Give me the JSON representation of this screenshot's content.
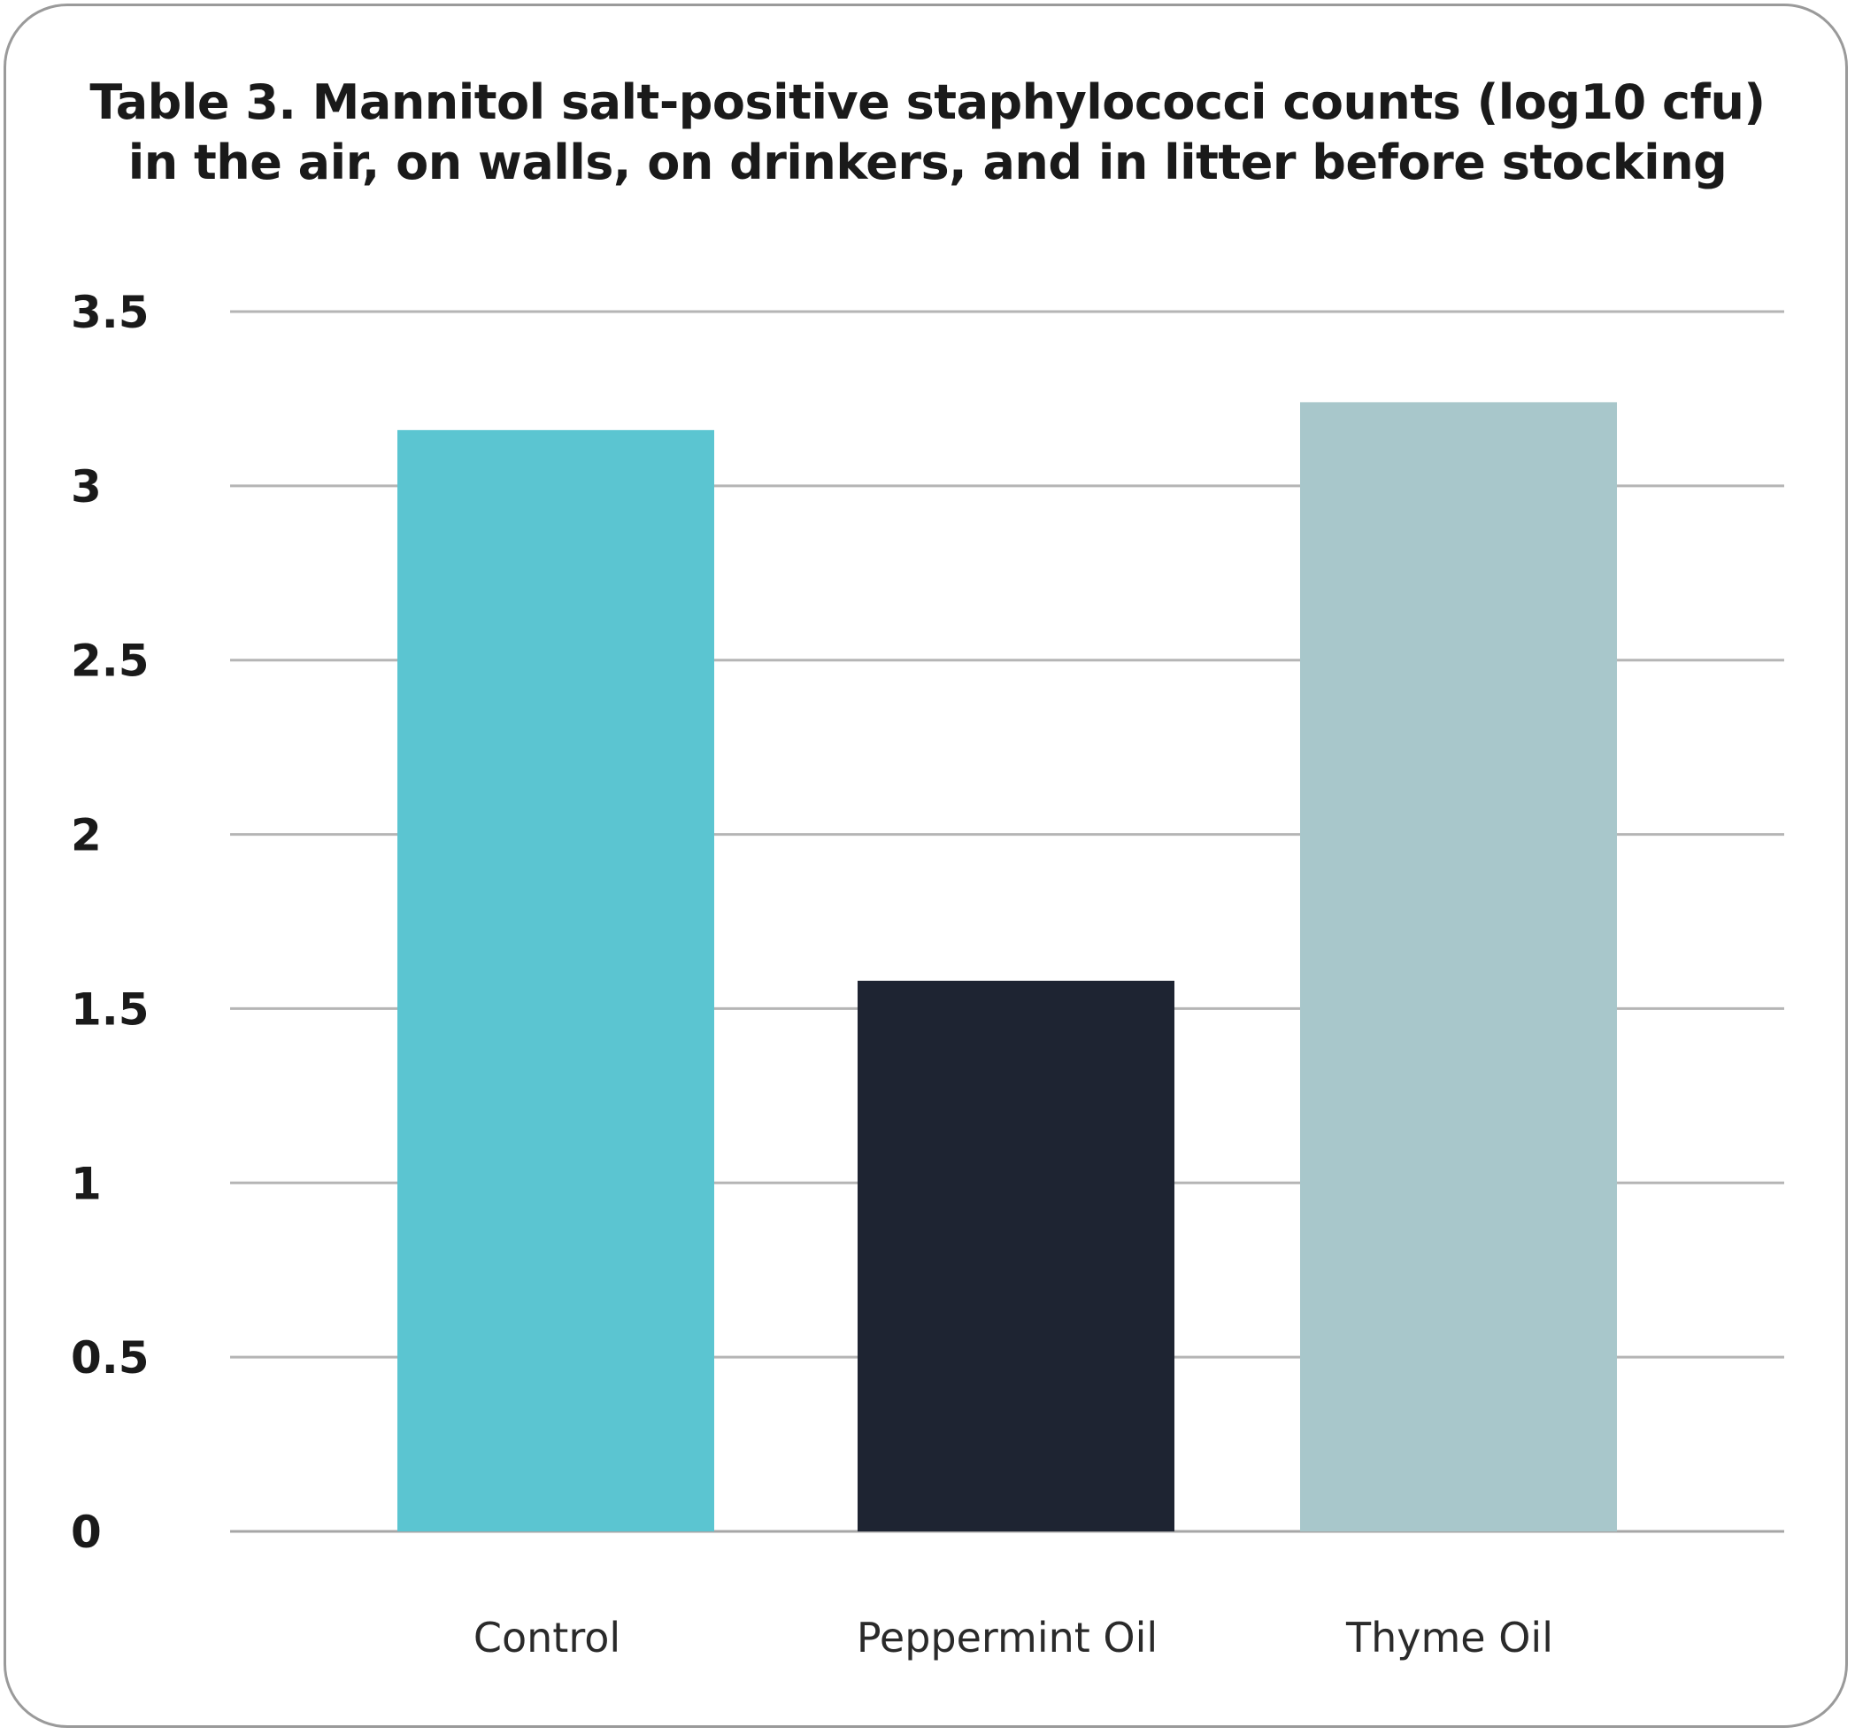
{
  "chart_data": {
    "type": "bar",
    "title_lines": [
      "Table 3. Mannitol salt-positive staphylococci counts (log10 cfu)",
      "in the air, on walls, on drinkers, and in litter before stocking"
    ],
    "categories": [
      "Control",
      "Peppermint Oil",
      "Thyme Oil"
    ],
    "values": [
      3.16,
      1.58,
      3.24
    ],
    "colors": [
      "#5bc5d1",
      "#1e2432",
      "#a8c7cb"
    ],
    "xlabel": "",
    "ylabel": "",
    "ylim": [
      0,
      3.5
    ],
    "yticks": [
      "0",
      "0.5",
      "1",
      "1.5",
      "2",
      "2.5",
      "3",
      "3.5"
    ],
    "grid": true,
    "legend": "none"
  }
}
